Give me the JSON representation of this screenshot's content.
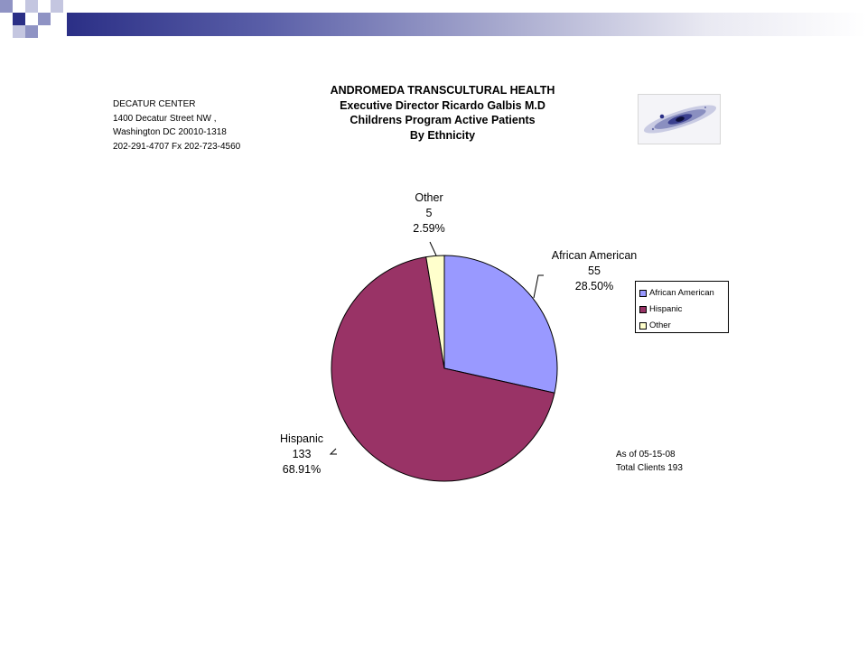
{
  "slide": {
    "accent": "#2b2f86",
    "accent_light": "#8f93c4"
  },
  "address": {
    "lines": [
      "DECATUR CENTER",
      "1400 Decatur Street NW ,",
      "Washington DC 20010-1318",
      "202-291-4707 Fx 202-723-4560"
    ]
  },
  "header": {
    "lines": [
      "ANDROMEDA TRANSCULTURAL HEALTH",
      "Executive Director Ricardo Galbis M.D",
      "Childrens Program Active Patients",
      "By Ethnicity"
    ]
  },
  "logo": {
    "icon": "galaxy-image"
  },
  "note": {
    "lines": [
      "As of 05-15-08",
      "Total Clients 193"
    ]
  },
  "chart_data": {
    "type": "pie",
    "title": "",
    "categories": [
      "African American",
      "Hispanic",
      "Other"
    ],
    "values": [
      55,
      133,
      5
    ],
    "percents": [
      "28.50%",
      "68.91%",
      "2.59%"
    ],
    "colors": [
      "#9999ff",
      "#993366",
      "#ffffcc"
    ],
    "start": "top",
    "direction": "clockwise",
    "legend": {
      "position": "right",
      "entries": [
        "African American",
        "Hispanic",
        "Other"
      ]
    }
  }
}
